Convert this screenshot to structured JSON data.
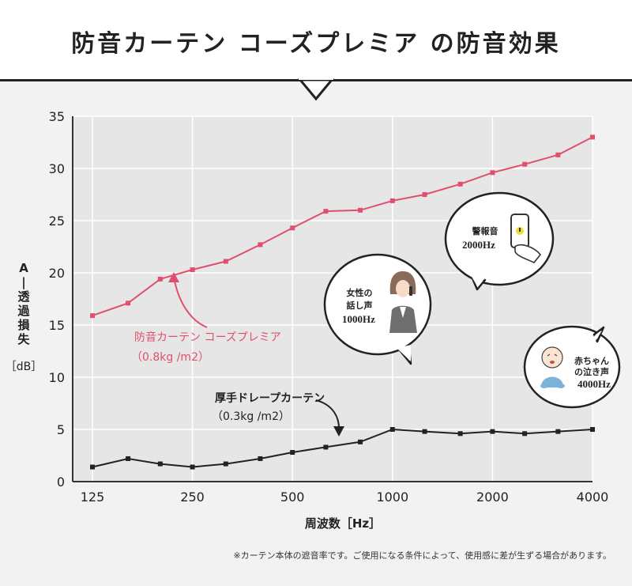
{
  "title": "防音カーテン コーズプレミア の防音効果",
  "footnote": "※カーテン本体の遮音率です。ご使用になる条件によって、使用感に差が生ずる場合があります。",
  "colors": {
    "premium": "#e0506e",
    "drape": "#222222",
    "grid": "#ffffff",
    "plot_bg": "#e6e6e6"
  },
  "bubbles": {
    "voice": {
      "line1": "女性の",
      "line2": "話し声",
      "line3": "1000Hz",
      "icon": "woman-on-phone-icon"
    },
    "alarm": {
      "line1": "警報音",
      "line2": "2000Hz",
      "icon": "smartphone-alert-icon"
    },
    "baby": {
      "line1": "赤ちゃん",
      "line2": "の泣き声",
      "line3": "4000Hz",
      "icon": "crying-baby-icon"
    }
  },
  "chart_data": {
    "type": "line",
    "title": "防音カーテン コーズプレミア の防音効果",
    "xlabel": "周波数［Hz］",
    "ylabel": "A-透過損失［dB］",
    "ylabel_chars": [
      "A",
      "-",
      "透",
      "過",
      "損",
      "失"
    ],
    "yunit": "［dB］",
    "ylim": [
      0,
      35
    ],
    "yticks": [
      0,
      5,
      10,
      15,
      20,
      25,
      30,
      35
    ],
    "x": [
      125,
      160,
      200,
      250,
      315,
      400,
      500,
      630,
      800,
      1000,
      1250,
      1600,
      2000,
      2500,
      3150,
      4000
    ],
    "xticks": [
      125,
      250,
      500,
      1000,
      2000,
      4000
    ],
    "grid": true,
    "series": [
      {
        "name": "防音カーテン コーズプレミア",
        "label_line1": "防音カーテン コーズプレミア",
        "label_line2": "（0.8kg /m2）",
        "values": [
          15.9,
          17.1,
          19.4,
          20.3,
          21.1,
          22.7,
          24.3,
          25.9,
          26.0,
          26.9,
          27.5,
          28.5,
          29.6,
          30.4,
          31.3,
          33.0
        ]
      },
      {
        "name": "厚手ドレープカーテン",
        "label_line1": "厚手ドレープカーテン",
        "label_line2": "（0.3kg /m2）",
        "values": [
          1.4,
          2.2,
          1.7,
          1.4,
          1.7,
          2.2,
          2.8,
          3.3,
          3.8,
          5.0,
          4.8,
          4.6,
          4.8,
          4.6,
          4.8,
          5.0
        ]
      }
    ]
  }
}
